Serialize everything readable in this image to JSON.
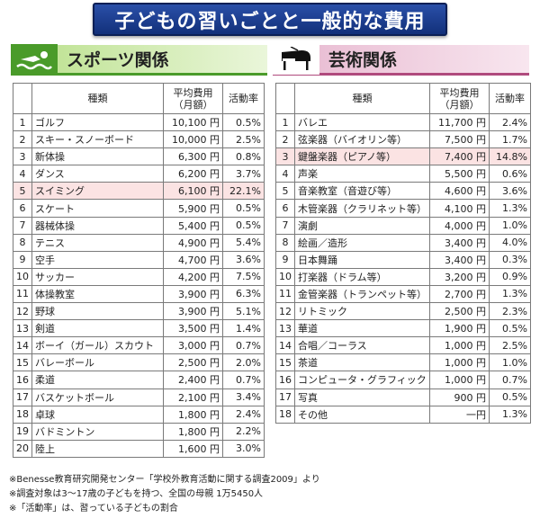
{
  "title": "子どもの習いごとと一般的な費用",
  "sports": {
    "heading": "スポーツ関係",
    "icon": "swimmer-icon",
    "headers": {
      "type": "種類",
      "cost": "平均費用\n（月額）",
      "rate": "活動率"
    },
    "rows": [
      {
        "rank": "1",
        "name": "ゴルフ",
        "cost": "10,100 円",
        "rate": "0.5%"
      },
      {
        "rank": "2",
        "name": "スキー・スノーボード",
        "cost": "10,000 円",
        "rate": "2.5%"
      },
      {
        "rank": "3",
        "name": "新体操",
        "cost": "6,300 円",
        "rate": "0.8%"
      },
      {
        "rank": "4",
        "name": "ダンス",
        "cost": "6,200 円",
        "rate": "3.7%"
      },
      {
        "rank": "5",
        "name": "スイミング",
        "cost": "6,100 円",
        "rate": "22.1%",
        "highlight": true
      },
      {
        "rank": "6",
        "name": "スケート",
        "cost": "5,900 円",
        "rate": "0.5%"
      },
      {
        "rank": "7",
        "name": "器械体操",
        "cost": "5,400 円",
        "rate": "0.5%"
      },
      {
        "rank": "8",
        "name": "テニス",
        "cost": "4,900 円",
        "rate": "5.4%"
      },
      {
        "rank": "9",
        "name": "空手",
        "cost": "4,700 円",
        "rate": "3.6%"
      },
      {
        "rank": "10",
        "name": "サッカー",
        "cost": "4,200 円",
        "rate": "7.5%"
      },
      {
        "rank": "11",
        "name": "体操教室",
        "cost": "3,900 円",
        "rate": "6.3%"
      },
      {
        "rank": "12",
        "name": "野球",
        "cost": "3,900 円",
        "rate": "5.1%"
      },
      {
        "rank": "13",
        "name": "剣道",
        "cost": "3,500 円",
        "rate": "1.4%"
      },
      {
        "rank": "14",
        "name": "ボーイ（ガール）スカウト",
        "cost": "3,000 円",
        "rate": "0.7%"
      },
      {
        "rank": "15",
        "name": "バレーボール",
        "cost": "2,500 円",
        "rate": "2.0%"
      },
      {
        "rank": "16",
        "name": "柔道",
        "cost": "2,400 円",
        "rate": "0.7%"
      },
      {
        "rank": "17",
        "name": "バスケットボール",
        "cost": "2,100 円",
        "rate": "3.4%"
      },
      {
        "rank": "18",
        "name": "卓球",
        "cost": "1,800 円",
        "rate": "2.4%"
      },
      {
        "rank": "19",
        "name": "バドミントン",
        "cost": "1,800 円",
        "rate": "2.2%"
      },
      {
        "rank": "20",
        "name": "陸上",
        "cost": "1,600 円",
        "rate": "3.0%"
      }
    ]
  },
  "arts": {
    "heading": "芸術関係",
    "icon": "piano-icon",
    "headers": {
      "type": "種類",
      "cost": "平均費用\n（月額）",
      "rate": "活動率"
    },
    "rows": [
      {
        "rank": "1",
        "name": "バレエ",
        "cost": "11,700 円",
        "rate": "2.4%"
      },
      {
        "rank": "2",
        "name": "弦楽器（バイオリン等）",
        "cost": "7,500 円",
        "rate": "1.7%"
      },
      {
        "rank": "3",
        "name": "鍵盤楽器（ピアノ等）",
        "cost": "7,400 円",
        "rate": "14.8%",
        "highlight": true
      },
      {
        "rank": "4",
        "name": "声楽",
        "cost": "5,500 円",
        "rate": "0.6%"
      },
      {
        "rank": "5",
        "name": "音楽教室（音遊び等）",
        "cost": "4,600 円",
        "rate": "3.6%"
      },
      {
        "rank": "6",
        "name": "木管楽器（クラリネット等）",
        "cost": "4,100 円",
        "rate": "1.3%"
      },
      {
        "rank": "7",
        "name": "演劇",
        "cost": "4,000 円",
        "rate": "1.0%"
      },
      {
        "rank": "8",
        "name": "絵画／造形",
        "cost": "3,400 円",
        "rate": "4.0%"
      },
      {
        "rank": "9",
        "name": "日本舞踊",
        "cost": "3,400 円",
        "rate": "0.3%"
      },
      {
        "rank": "10",
        "name": "打楽器（ドラム等）",
        "cost": "3,200 円",
        "rate": "0.9%"
      },
      {
        "rank": "11",
        "name": "金管楽器（トランペット等）",
        "cost": "2,700 円",
        "rate": "1.3%"
      },
      {
        "rank": "12",
        "name": "リトミック",
        "cost": "2,500 円",
        "rate": "2.3%"
      },
      {
        "rank": "13",
        "name": "華道",
        "cost": "1,900 円",
        "rate": "0.5%"
      },
      {
        "rank": "14",
        "name": "合唱／コーラス",
        "cost": "1,000 円",
        "rate": "2.5%"
      },
      {
        "rank": "15",
        "name": "茶道",
        "cost": "1,000 円",
        "rate": "1.0%"
      },
      {
        "rank": "16",
        "name": "コンピュータ・グラフィック",
        "cost": "1,000 円",
        "rate": "0.7%"
      },
      {
        "rank": "17",
        "name": "写真",
        "cost": "900 円",
        "rate": "0.5%"
      },
      {
        "rank": "18",
        "name": "その他",
        "cost": "一円",
        "rate": "1.3%"
      }
    ]
  },
  "notes": [
    "※Benesse教育研究開発センター「学校外教育活動に関する調査2009」より",
    "※調査対象は3～17歳の子どもを持つ、全国の母親 1万5450人",
    "※「活動率」は、習っている子どもの割合"
  ],
  "colors": {
    "title_bg": "#1c3f94",
    "sports_accent": "#4a9b2a",
    "arts_accent": "#b04a7d",
    "highlight_row": "#fbe3e3"
  }
}
